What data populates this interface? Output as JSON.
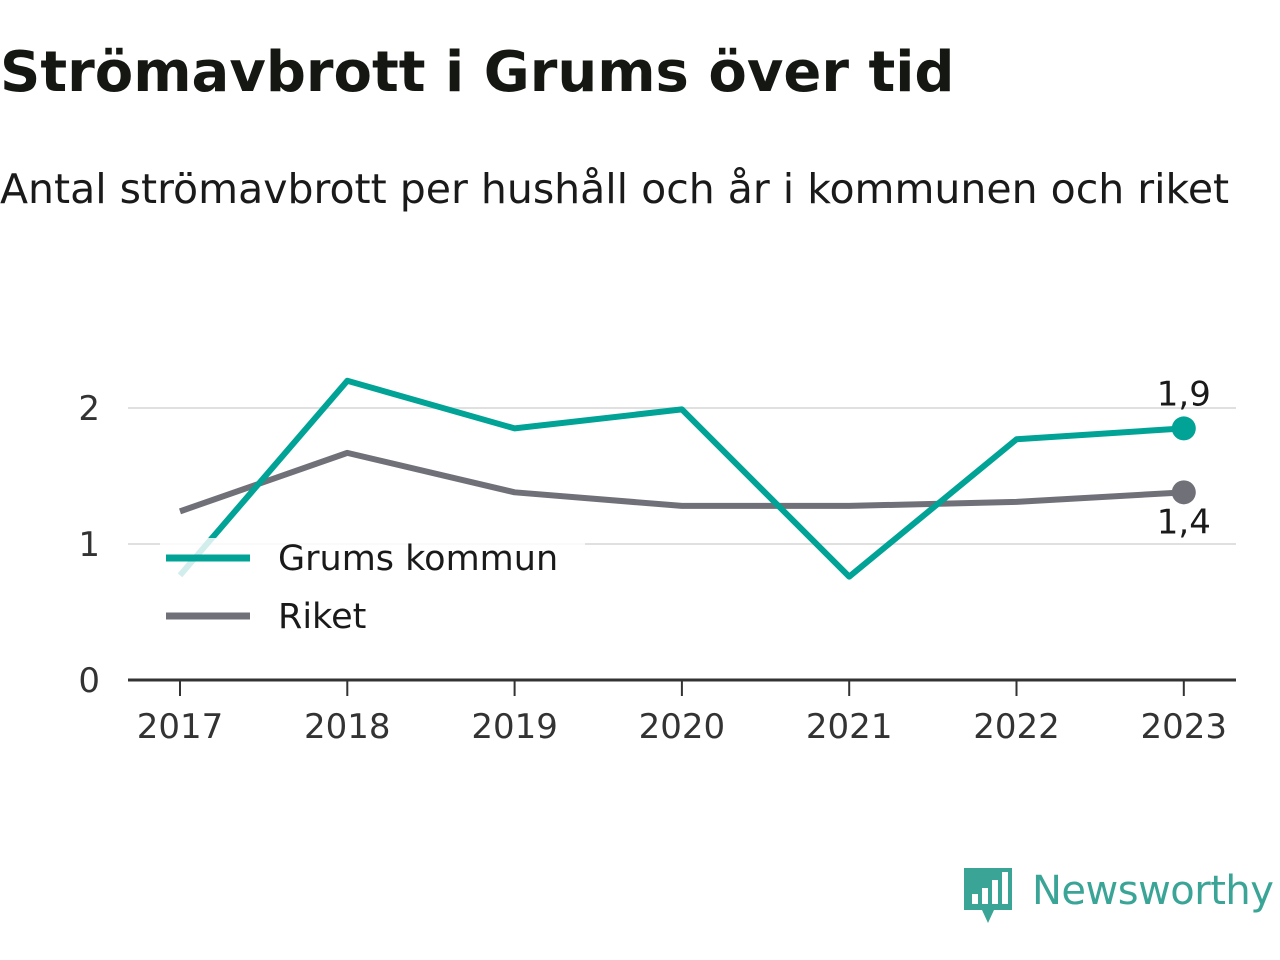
{
  "title": "Strömavbrott i Grums över tid",
  "subtitle": "Antal strömavbrott per hushåll och år i kommunen och riket",
  "brand": {
    "name": "Newsworthy"
  },
  "colors": {
    "grums": "#00a396",
    "riket": "#707078",
    "grid": "#e0e0e0",
    "axis": "#333333"
  },
  "chart_data": {
    "type": "line",
    "title": "Strömavbrott i Grums över tid",
    "subtitle": "Antal strömavbrott per hushåll och år i kommunen och riket",
    "xlabel": "",
    "ylabel": "",
    "x": [
      "2017",
      "2018",
      "2019",
      "2020",
      "2021",
      "2022",
      "2023"
    ],
    "ylim": [
      0,
      2.3
    ],
    "yticks": [
      0,
      1,
      2
    ],
    "grid": true,
    "legend_position": "bottom-left",
    "series": [
      {
        "name": "Grums kommun",
        "color": "#00a396",
        "values": [
          0.77,
          2.2,
          1.85,
          1.99,
          0.76,
          1.77,
          1.85
        ]
      },
      {
        "name": "Riket",
        "color": "#707078",
        "values": [
          1.24,
          1.67,
          1.38,
          1.28,
          1.28,
          1.31,
          1.38
        ]
      }
    ],
    "end_labels": [
      "1,9",
      "1,4"
    ]
  }
}
